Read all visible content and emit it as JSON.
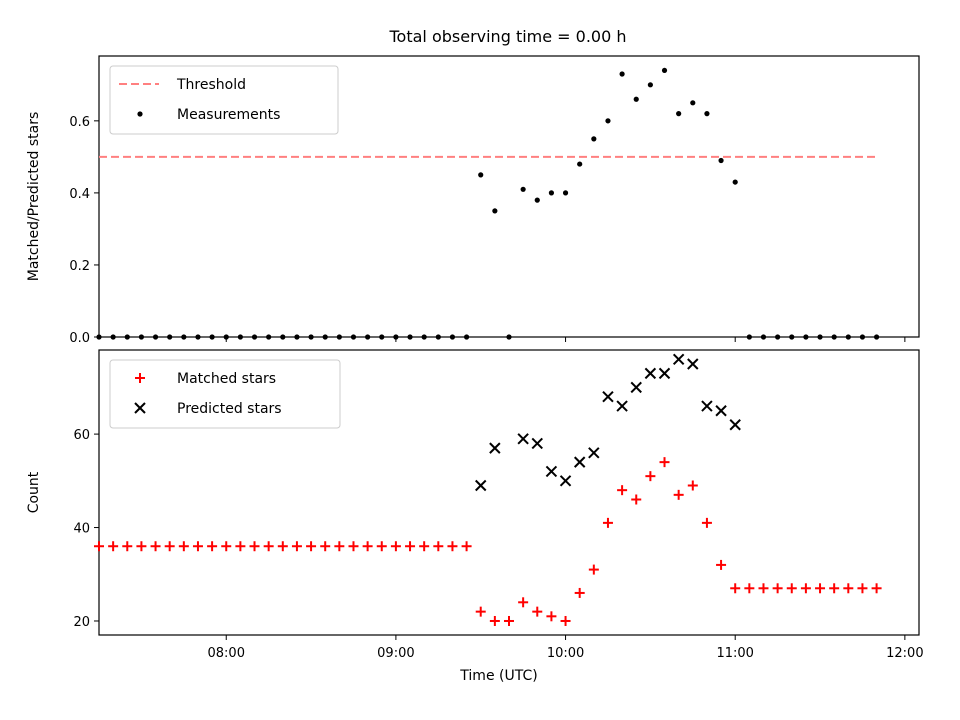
{
  "title": "Total observing time = 0.00 h",
  "colors": {
    "threshold": "#ff8080",
    "measurements": "#000000",
    "matched": "#ff0000",
    "predicted": "#000000"
  },
  "chart_data": [
    {
      "type": "scatter",
      "ylabel": "Matched/Predicted stars",
      "xlim": [
        "07:15",
        "12:05"
      ],
      "ylim": [
        0,
        0.78
      ],
      "yticks": [
        "0.0",
        "0.2",
        "0.4",
        "0.6"
      ],
      "ytick_values": [
        0,
        0.2,
        0.4,
        0.6
      ],
      "xticks": [
        "08:00",
        "09:00",
        "10:00",
        "11:00",
        "12:00"
      ],
      "show_xtick_labels": false,
      "grid": false,
      "legend_position": "top-left",
      "threshold": {
        "name": "Threshold",
        "value": 0.5,
        "x_range": [
          "07:15",
          "11:50"
        ],
        "style": "dashed"
      },
      "series": [
        {
          "name": "Measurements",
          "marker": "dot",
          "x": [
            "07:15",
            "07:20",
            "07:25",
            "07:30",
            "07:35",
            "07:40",
            "07:45",
            "07:50",
            "07:55",
            "08:00",
            "08:05",
            "08:10",
            "08:15",
            "08:20",
            "08:25",
            "08:30",
            "08:35",
            "08:40",
            "08:45",
            "08:50",
            "08:55",
            "09:00",
            "09:05",
            "09:10",
            "09:15",
            "09:20",
            "09:25",
            "09:30",
            "09:35",
            "09:40",
            "09:45",
            "09:50",
            "09:55",
            "10:00",
            "10:05",
            "10:10",
            "10:15",
            "10:20",
            "10:25",
            "10:30",
            "10:35",
            "10:40",
            "10:45",
            "10:50",
            "10:55",
            "11:00",
            "11:05",
            "11:10",
            "11:15",
            "11:20",
            "11:25",
            "11:30",
            "11:35",
            "11:40",
            "11:45",
            "11:50"
          ],
          "y": [
            0,
            0,
            0,
            0,
            0,
            0,
            0,
            0,
            0,
            0,
            0,
            0,
            0,
            0,
            0,
            0,
            0,
            0,
            0,
            0,
            0,
            0,
            0,
            0,
            0,
            0,
            0,
            0.45,
            0.35,
            0,
            0.41,
            0.38,
            0.4,
            0.4,
            0.48,
            0.55,
            0.6,
            0.73,
            0.66,
            0.7,
            0.74,
            0.62,
            0.65,
            0.62,
            0.49,
            0.43,
            0,
            0,
            0,
            0,
            0,
            0,
            0,
            0,
            0,
            0
          ]
        }
      ]
    },
    {
      "type": "scatter",
      "xlabel": "Time (UTC)",
      "ylabel": "Count",
      "xlim": [
        "07:15",
        "12:05"
      ],
      "ylim": [
        17,
        78
      ],
      "yticks": [
        "20",
        "40",
        "60"
      ],
      "ytick_values": [
        20,
        40,
        60
      ],
      "xticks": [
        "08:00",
        "09:00",
        "10:00",
        "11:00",
        "12:00"
      ],
      "show_xtick_labels": true,
      "grid": false,
      "legend_position": "top-left",
      "series": [
        {
          "name": "Matched stars",
          "marker": "plus",
          "x": [
            "07:15",
            "07:20",
            "07:25",
            "07:30",
            "07:35",
            "07:40",
            "07:45",
            "07:50",
            "07:55",
            "08:00",
            "08:05",
            "08:10",
            "08:15",
            "08:20",
            "08:25",
            "08:30",
            "08:35",
            "08:40",
            "08:45",
            "08:50",
            "08:55",
            "09:00",
            "09:05",
            "09:10",
            "09:15",
            "09:20",
            "09:25",
            "09:30",
            "09:35",
            "09:40",
            "09:45",
            "09:50",
            "09:55",
            "10:00",
            "10:05",
            "10:10",
            "10:15",
            "10:20",
            "10:25",
            "10:30",
            "10:35",
            "10:40",
            "10:45",
            "10:50",
            "10:55",
            "11:00",
            "11:05",
            "11:10",
            "11:15",
            "11:20",
            "11:25",
            "11:30",
            "11:35",
            "11:40",
            "11:45",
            "11:50"
          ],
          "y": [
            36,
            36,
            36,
            36,
            36,
            36,
            36,
            36,
            36,
            36,
            36,
            36,
            36,
            36,
            36,
            36,
            36,
            36,
            36,
            36,
            36,
            36,
            36,
            36,
            36,
            36,
            36,
            22,
            20,
            20,
            24,
            22,
            21,
            20,
            26,
            31,
            41,
            48,
            46,
            51,
            54,
            47,
            49,
            41,
            32,
            27,
            27,
            27,
            27,
            27,
            27,
            27,
            27,
            27,
            27,
            27
          ]
        },
        {
          "name": "Predicted stars",
          "marker": "x",
          "x": [
            "09:30",
            "09:35",
            "09:45",
            "09:50",
            "09:55",
            "10:00",
            "10:05",
            "10:10",
            "10:15",
            "10:20",
            "10:25",
            "10:30",
            "10:35",
            "10:40",
            "10:45",
            "10:50",
            "10:55",
            "11:00"
          ],
          "y": [
            49,
            57,
            59,
            58,
            52,
            50,
            54,
            56,
            68,
            66,
            70,
            73,
            73,
            76,
            75,
            66,
            65,
            62
          ]
        }
      ]
    }
  ]
}
